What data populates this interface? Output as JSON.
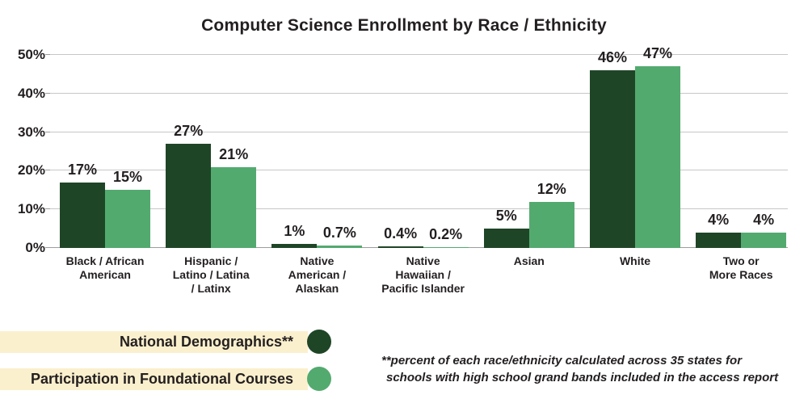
{
  "colors": {
    "dark_green": "#1f4527",
    "light_green": "#53aa6f",
    "legend_band": "#fbf0cd",
    "grid": "#c7c7c7",
    "text": "#231f20"
  },
  "chart_data": {
    "type": "bar",
    "title": "Computer Science Enrollment by Race / Ethnicity",
    "categories": [
      "Black / African\nAmerican",
      "Hispanic /\nLatino / Latina\n/ Latinx",
      "Native\nAmerican /\nAlaskan",
      "Native\nHawaiian /\nPacific Islander",
      "Asian",
      "White",
      "Two or\nMore Races"
    ],
    "series": [
      {
        "name": "National Demographics**",
        "color_key": "dark_green",
        "values": [
          17,
          27,
          1,
          0.4,
          5,
          46,
          4
        ],
        "value_labels": [
          "17%",
          "27%",
          "1%",
          "0.4%",
          "5%",
          "46%",
          "4%"
        ]
      },
      {
        "name": "Participation in Foundational Courses",
        "color_key": "light_green",
        "values": [
          15,
          21,
          0.7,
          0.2,
          12,
          47,
          4
        ],
        "value_labels": [
          "15%",
          "21%",
          "0.7%",
          "0.2%",
          "12%",
          "47%",
          "4%"
        ]
      }
    ],
    "ylim": [
      0,
      50
    ],
    "y_ticks": [
      {
        "label": "0%",
        "value": 0
      },
      {
        "label": "10%",
        "value": 10
      },
      {
        "label": "20%",
        "value": 20
      },
      {
        "label": "30%",
        "value": 30
      },
      {
        "label": "40%",
        "value": 40
      },
      {
        "label": "50%",
        "value": 50
      }
    ],
    "grid": true,
    "legend_position": "bottom-left"
  },
  "footnote": {
    "line1": "**percent of each race/ethnicity calculated across 35 states for",
    "line2": "schools with high school grand bands included in the access report"
  }
}
